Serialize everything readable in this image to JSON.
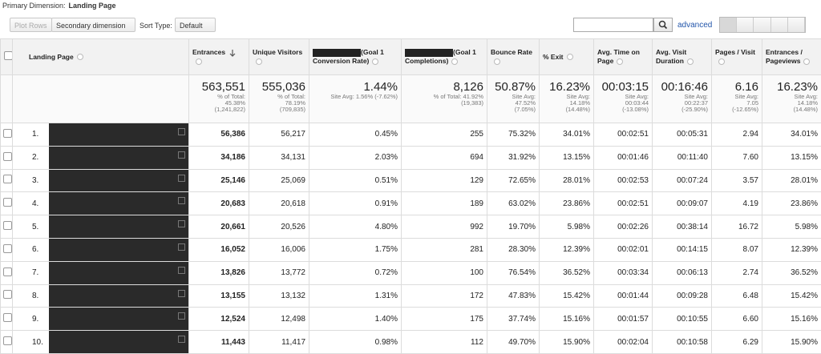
{
  "primary_dimension": {
    "label": "Primary Dimension:",
    "value": "Landing Page"
  },
  "toolbar": {
    "plot_rows": "Plot Rows",
    "secondary_dimension": "Secondary dimension",
    "sort_type_label": "Sort Type:",
    "sort_type": "Default",
    "advanced": "advanced"
  },
  "table": {
    "headers": [
      "Landing Page",
      "Entrances",
      "Unique Visitors",
      "(Goal 1 Conversion Rate)",
      "(Goal 1 Completions)",
      "Bounce Rate",
      "% Exit",
      "Avg. Time on Page",
      "Avg. Visit Duration",
      "Pages / Visit",
      "Entrances / Pageviews"
    ],
    "totals": [
      {
        "value": "563,551",
        "lines": [
          "% of Total:",
          "45.38%",
          "(1,241,822)"
        ]
      },
      {
        "value": "555,036",
        "lines": [
          "% of Total:",
          "78.19%",
          "(709,835)"
        ]
      },
      {
        "value": "1.44%",
        "lines": [
          "Site Avg: 1.56% (-7.62%)"
        ]
      },
      {
        "value": "8,126",
        "lines": [
          "% of Total: 41.92%",
          "(19,383)"
        ]
      },
      {
        "value": "50.87%",
        "lines": [
          "Site Avg:",
          "47.52%",
          "(7.05%)"
        ]
      },
      {
        "value": "16.23%",
        "lines": [
          "Site Avg:",
          "14.18%",
          "(14.48%)"
        ]
      },
      {
        "value": "00:03:15",
        "lines": [
          "Site Avg:",
          "00:03:44",
          "(-13.08%)"
        ]
      },
      {
        "value": "00:16:46",
        "lines": [
          "Site Avg:",
          "00:22:37",
          "(-25.90%)"
        ]
      },
      {
        "value": "6.16",
        "lines": [
          "Site Avg:",
          "7.05",
          "(-12.65%)"
        ]
      },
      {
        "value": "16.23%",
        "lines": [
          "Site Avg:",
          "14.18%",
          "(14.48%)"
        ]
      }
    ],
    "rows": [
      [
        "1.",
        "56,386",
        "56,217",
        "0.45%",
        "255",
        "75.32%",
        "34.01%",
        "00:02:51",
        "00:05:31",
        "2.94",
        "34.01%"
      ],
      [
        "2.",
        "34,186",
        "34,131",
        "2.03%",
        "694",
        "31.92%",
        "13.15%",
        "00:01:46",
        "00:11:40",
        "7.60",
        "13.15%"
      ],
      [
        "3.",
        "25,146",
        "25,069",
        "0.51%",
        "129",
        "72.65%",
        "28.01%",
        "00:02:53",
        "00:07:24",
        "3.57",
        "28.01%"
      ],
      [
        "4.",
        "20,683",
        "20,618",
        "0.91%",
        "189",
        "63.02%",
        "23.86%",
        "00:02:51",
        "00:09:07",
        "4.19",
        "23.86%"
      ],
      [
        "5.",
        "20,661",
        "20,526",
        "4.80%",
        "992",
        "19.70%",
        "5.98%",
        "00:02:26",
        "00:38:14",
        "16.72",
        "5.98%"
      ],
      [
        "6.",
        "16,052",
        "16,006",
        "1.75%",
        "281",
        "28.30%",
        "12.39%",
        "00:02:01",
        "00:14:15",
        "8.07",
        "12.39%"
      ],
      [
        "7.",
        "13,826",
        "13,772",
        "0.72%",
        "100",
        "76.54%",
        "36.52%",
        "00:03:34",
        "00:06:13",
        "2.74",
        "36.52%"
      ],
      [
        "8.",
        "13,155",
        "13,132",
        "1.31%",
        "172",
        "47.83%",
        "15.42%",
        "00:01:44",
        "00:09:28",
        "6.48",
        "15.42%"
      ],
      [
        "9.",
        "12,524",
        "12,498",
        "1.40%",
        "175",
        "37.74%",
        "15.16%",
        "00:01:57",
        "00:10:55",
        "6.60",
        "15.16%"
      ],
      [
        "10.",
        "11,443",
        "11,417",
        "0.98%",
        "112",
        "49.70%",
        "15.90%",
        "00:02:04",
        "00:10:58",
        "6.29",
        "15.90%"
      ]
    ]
  }
}
